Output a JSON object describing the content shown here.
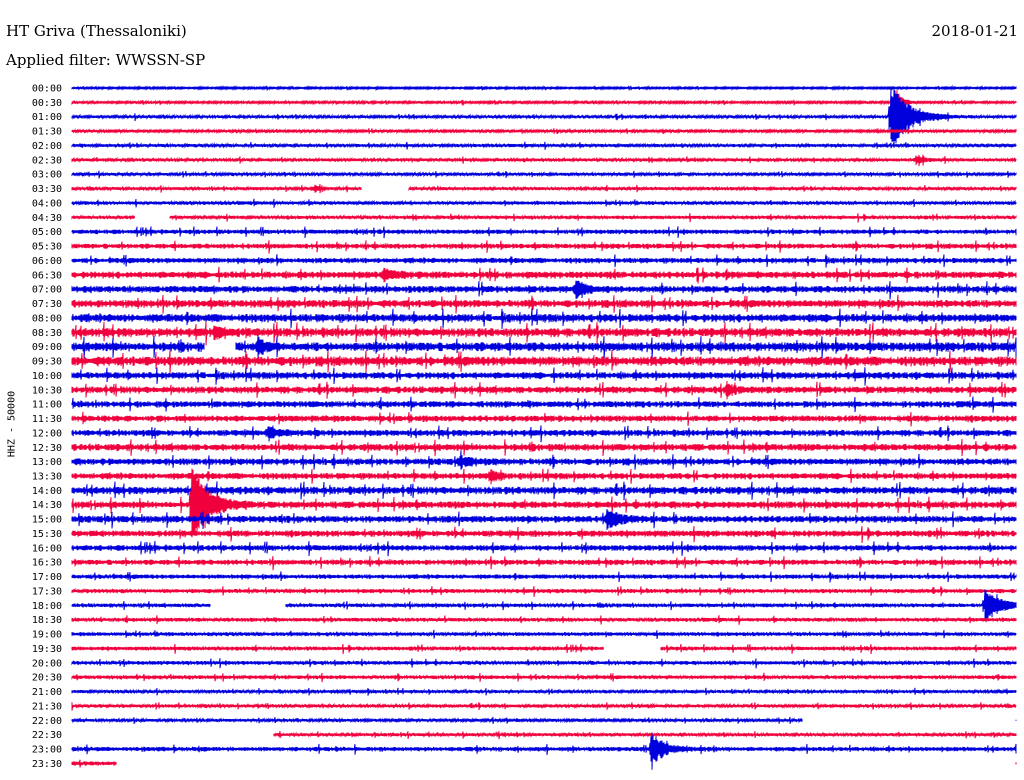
{
  "header": {
    "station": "HT Griva (Thessaloniki)",
    "filter": "Applied filter: WWSSN-SP",
    "date": "2018-01-21"
  },
  "chart_data": {
    "type": "helicorder",
    "channel_label": "HHZ - 50000",
    "colors": {
      "even": "#0000dd",
      "odd": "#f0003c"
    },
    "row_labels": [
      "00:00",
      "00:30",
      "01:00",
      "01:30",
      "02:00",
      "02:30",
      "03:00",
      "03:30",
      "04:00",
      "04:30",
      "05:00",
      "05:30",
      "06:00",
      "06:30",
      "07:00",
      "07:30",
      "08:00",
      "08:30",
      "09:00",
      "09:30",
      "10:00",
      "10:30",
      "11:00",
      "11:30",
      "12:00",
      "12:30",
      "13:00",
      "13:30",
      "14:00",
      "14:30",
      "15:00",
      "15:30",
      "16:00",
      "16:30",
      "17:00",
      "17:30",
      "18:00",
      "18:30",
      "19:00",
      "19:30",
      "20:00",
      "20:30",
      "21:00",
      "21:30",
      "22:00",
      "22:30",
      "23:00",
      "23:30"
    ],
    "x_range_minutes": [
      0,
      30
    ],
    "noise": [
      0.6,
      0.7,
      0.9,
      0.8,
      1.0,
      1.0,
      0.9,
      1.0,
      1.1,
      1.1,
      1.4,
      1.6,
      1.7,
      2.2,
      2.2,
      2.4,
      2.6,
      2.8,
      2.9,
      3.0,
      2.2,
      2.2,
      2.0,
      2.0,
      2.0,
      2.2,
      2.1,
      2.0,
      2.4,
      2.2,
      2.2,
      2.0,
      1.8,
      1.7,
      1.4,
      1.3,
      1.2,
      1.2,
      1.2,
      1.2,
      1.2,
      1.2,
      1.0,
      1.0,
      0.9,
      1.0,
      1.4,
      1.3
    ],
    "events": [
      {
        "row": 2,
        "minute": 26.0,
        "amp": 36,
        "dur": 0.9,
        "label": "earthquake"
      },
      {
        "row": 1,
        "minute": 26.2,
        "amp": 14,
        "dur": 0.3
      },
      {
        "row": 5,
        "minute": 26.8,
        "amp": 4,
        "dur": 0.4
      },
      {
        "row": 7,
        "minute": 7.7,
        "amp": 3,
        "dur": 0.4
      },
      {
        "row": 13,
        "minute": 9.9,
        "amp": 6,
        "dur": 0.5
      },
      {
        "row": 14,
        "minute": 16.0,
        "amp": 9,
        "dur": 0.5
      },
      {
        "row": 17,
        "minute": 4.5,
        "amp": 5,
        "dur": 0.5
      },
      {
        "row": 18,
        "minute": 5.9,
        "amp": 9,
        "dur": 0.3
      },
      {
        "row": 21,
        "minute": 20.8,
        "amp": 5,
        "dur": 0.4
      },
      {
        "row": 24,
        "minute": 6.2,
        "amp": 5,
        "dur": 0.6
      },
      {
        "row": 26,
        "minute": 12.3,
        "amp": 5,
        "dur": 0.7
      },
      {
        "row": 27,
        "minute": 13.3,
        "amp": 7,
        "dur": 0.3
      },
      {
        "row": 29,
        "minute": 3.8,
        "amp": 40,
        "dur": 0.8,
        "label": "earthquake"
      },
      {
        "row": 30,
        "minute": 17.0,
        "amp": 10,
        "dur": 0.6
      },
      {
        "row": 36,
        "minute": 29.0,
        "amp": 16,
        "dur": 0.8,
        "label": "earthquake"
      },
      {
        "row": 46,
        "minute": 18.4,
        "amp": 16,
        "dur": 0.7
      }
    ],
    "gaps": [
      {
        "row": 7,
        "from": 9.2,
        "to": 10.7
      },
      {
        "row": 9,
        "from": 2.0,
        "to": 3.1
      },
      {
        "row": 18,
        "from": 4.2,
        "to": 5.2
      },
      {
        "row": 36,
        "from": 4.4,
        "to": 6.8
      },
      {
        "row": 39,
        "from": 16.9,
        "to": 18.7
      },
      {
        "row": 44,
        "from": 23.2,
        "to": 30.0
      },
      {
        "row": 45,
        "from": 0.0,
        "to": 6.4
      },
      {
        "row": 47,
        "from": 1.4,
        "to": 30.0
      }
    ]
  }
}
